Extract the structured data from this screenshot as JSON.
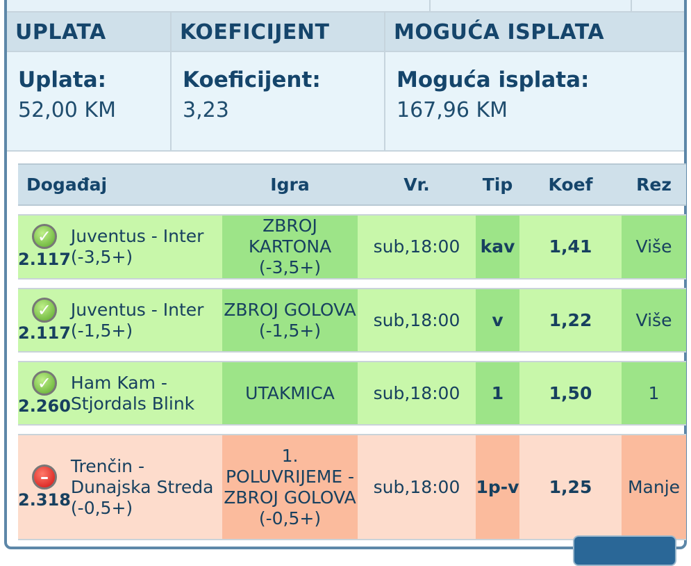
{
  "summary": {
    "headers": [
      "UPLATA",
      "KOEFICIJENT",
      "MOGUĆA ISPLATA"
    ],
    "labels": [
      "Uplata:",
      "Koeficijent:",
      "Moguća isplata:"
    ],
    "values": [
      "52,00 KM",
      "3,23",
      "167,96 KM"
    ]
  },
  "table": {
    "headers": [
      "Događaj",
      "Igra",
      "Vr.",
      "Tip",
      "Koef",
      "Rez"
    ],
    "rows": [
      {
        "status": "won",
        "icon": "check-icon",
        "code": "2.117",
        "event": "Juventus - Inter (-3,5+)",
        "game": "ZBROJ KARTONA (-3,5+)",
        "time": "sub,18:00",
        "tip": "kav",
        "odds": "1,41",
        "result": "Više"
      },
      {
        "status": "won",
        "icon": "check-icon",
        "code": "2.117",
        "event": "Juventus - Inter (-1,5+)",
        "game": "ZBROJ GOLOVA (-1,5+)",
        "time": "sub,18:00",
        "tip": "v",
        "odds": "1,22",
        "result": "Više"
      },
      {
        "status": "won",
        "icon": "check-icon",
        "code": "2.260",
        "event": "Ham Kam - Stjordals Blink",
        "game": "UTAKMICA",
        "time": "sub,18:00",
        "tip": "1",
        "odds": "1,50",
        "result": "1"
      },
      {
        "status": "lost",
        "icon": "minus-icon",
        "code": "2.318",
        "event": "Trenčin - Dunajska Streda (-0,5+)",
        "game": "1. POLUVRIJEME - ZBROJ GOLOVA (-0,5+)",
        "time": "sub,18:00",
        "tip": "1p-v",
        "odds": "1,25",
        "result": "Manje"
      }
    ]
  },
  "colors": {
    "won": "#c8f7aa",
    "won_dark": "#9de488",
    "lost": "#fddccc",
    "lost_dark": "#fbbb9d",
    "header": "#cfe0ea",
    "border": "#5d87a8"
  }
}
